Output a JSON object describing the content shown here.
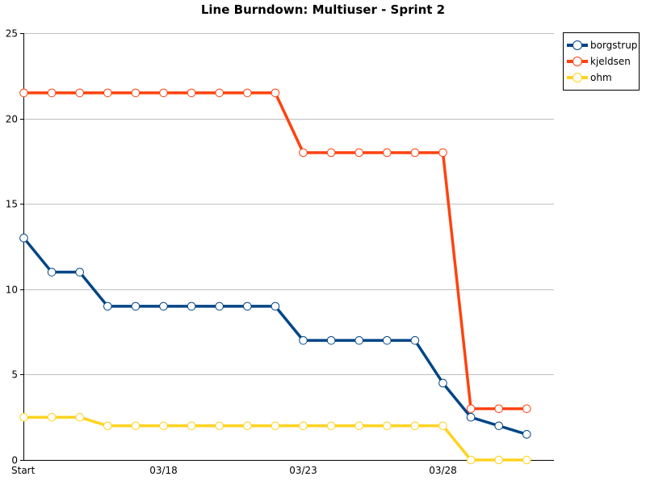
{
  "chart_data": {
    "type": "line",
    "title": "Line Burndown: Multiuser - Sprint 2",
    "xlabel": "",
    "ylabel": "",
    "ylim": [
      0,
      25
    ],
    "yticks": [
      0,
      5,
      10,
      15,
      20,
      25
    ],
    "grid": true,
    "legend_position": "top-right",
    "x_tick_labels": [
      {
        "index": 0,
        "label": "Start"
      },
      {
        "index": 5,
        "label": "03/18"
      },
      {
        "index": 10,
        "label": "03/23"
      },
      {
        "index": 15,
        "label": "03/28"
      }
    ],
    "x_count": 19,
    "series": [
      {
        "name": "borgstrup",
        "color": "#004586",
        "values": [
          13,
          11,
          11,
          9,
          9,
          9,
          9,
          9,
          9,
          9,
          7,
          7,
          7,
          7,
          7,
          4.5,
          2.5,
          2,
          1.5
        ]
      },
      {
        "name": "kjeldsen",
        "color": "#ff420e",
        "values": [
          21.5,
          21.5,
          21.5,
          21.5,
          21.5,
          21.5,
          21.5,
          21.5,
          21.5,
          21.5,
          18,
          18,
          18,
          18,
          18,
          18,
          3,
          3,
          3
        ]
      },
      {
        "name": "ohm",
        "color": "#ffd320",
        "values": [
          2.5,
          2.5,
          2.5,
          2,
          2,
          2,
          2,
          2,
          2,
          2,
          2,
          2,
          2,
          2,
          2,
          2,
          0,
          0,
          0
        ]
      }
    ]
  }
}
